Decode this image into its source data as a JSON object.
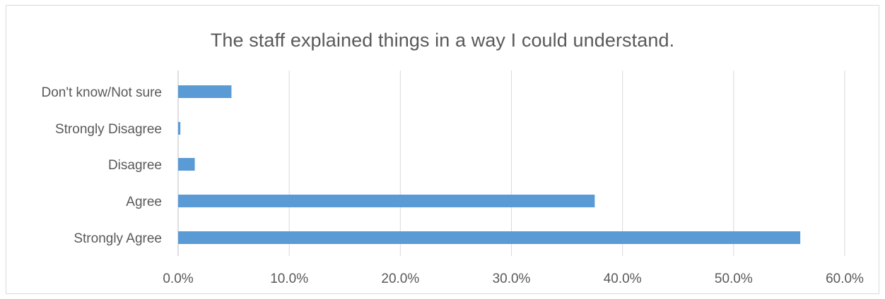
{
  "chart_data": {
    "type": "bar",
    "orientation": "horizontal",
    "title": "The staff explained things in a way I could understand.",
    "xlabel": "",
    "ylabel": "",
    "categories": [
      "Strongly Agree",
      "Agree",
      "Disagree",
      "Strongly Disagree",
      "Don't know/Not sure"
    ],
    "values": [
      56.0,
      37.5,
      1.5,
      0.2,
      4.8
    ],
    "value_unit": "%",
    "xlim": [
      0,
      60
    ],
    "x_ticks": [
      "0.0%",
      "10.0%",
      "20.0%",
      "30.0%",
      "40.0%",
      "50.0%",
      "60.0%"
    ],
    "grid": "vertical",
    "legend": "none",
    "bar_color": "#5b9bd5",
    "grid_color": "#d9d9d9"
  }
}
